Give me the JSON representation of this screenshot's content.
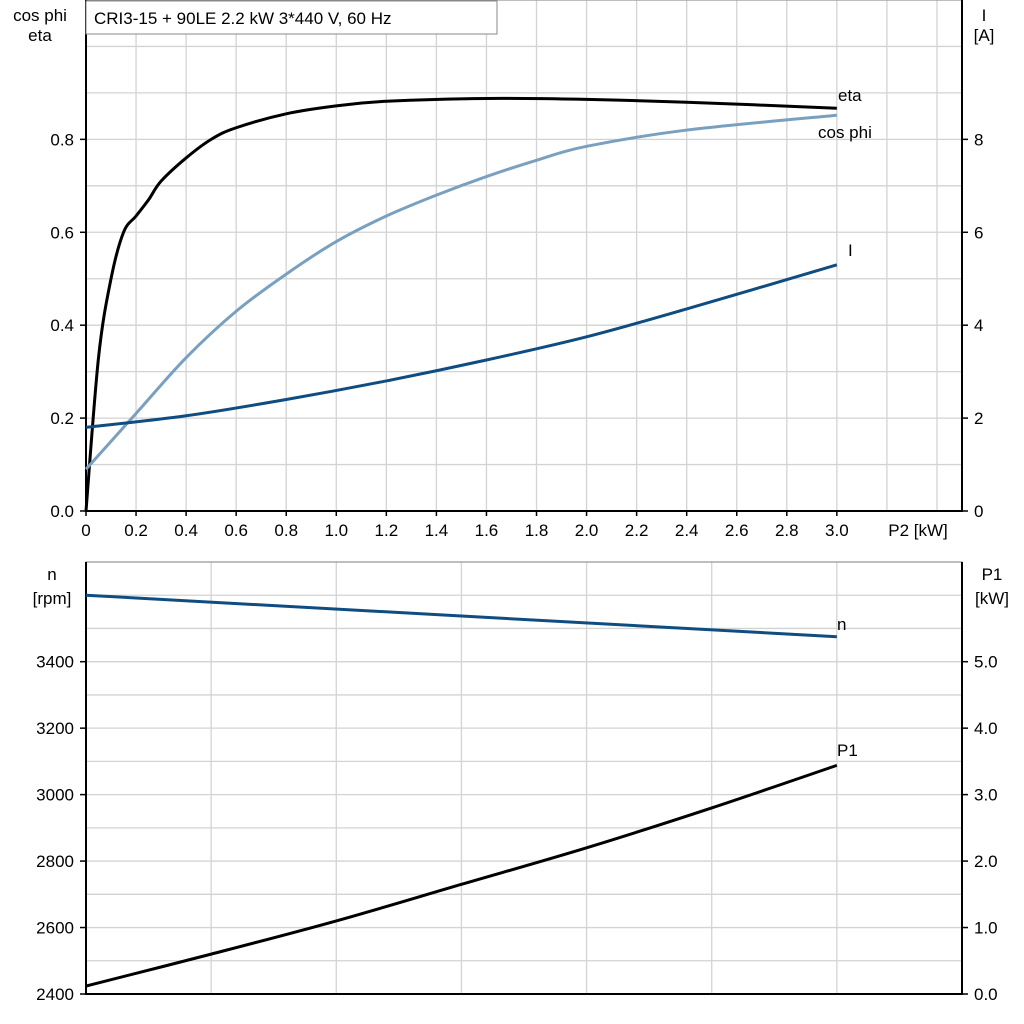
{
  "title": "CRI3-15 + 90LE   2.2 kW   3*440 V, 60 Hz",
  "colors": {
    "eta": "#000000",
    "cos_phi": "#7aa0c0",
    "I": "#0f4c81",
    "n": "#0f4c81",
    "P1": "#000000",
    "grid": "#d3d3d3"
  },
  "chart_data": [
    {
      "type": "line",
      "xlabel": "P2 [kW]",
      "xlim": [
        0,
        3.5
      ],
      "x_ticks": [
        "0",
        "0.2",
        "0.4",
        "0.6",
        "0.8",
        "1.0",
        "1.2",
        "1.4",
        "1.6",
        "1.8",
        "2.0",
        "2.2",
        "2.4",
        "2.6",
        "2.8",
        "3.0"
      ],
      "ylabel_left": [
        "cos phi",
        "eta"
      ],
      "ylim_left": [
        0,
        1.1
      ],
      "y_ticks_left": [
        "0.0",
        "0.2",
        "0.4",
        "0.6",
        "0.8"
      ],
      "ylabel_right": [
        "I",
        "[A]"
      ],
      "ylim_right": [
        0,
        11
      ],
      "y_ticks_right": [
        "0",
        "2",
        "4",
        "6",
        "8"
      ],
      "grid": true,
      "series": [
        {
          "name": "eta",
          "axis": "left",
          "x": [
            0,
            0.05,
            0.1,
            0.15,
            0.2,
            0.25,
            0.3,
            0.4,
            0.5,
            0.6,
            0.8,
            1.0,
            1.2,
            1.6,
            2.0,
            2.4,
            3.0
          ],
          "y": [
            0,
            0.33,
            0.5,
            0.6,
            0.635,
            0.67,
            0.71,
            0.76,
            0.8,
            0.825,
            0.855,
            0.872,
            0.882,
            0.888,
            0.886,
            0.88,
            0.867
          ]
        },
        {
          "name": "cos phi",
          "axis": "left",
          "x": [
            0,
            0.2,
            0.4,
            0.6,
            0.8,
            1.0,
            1.2,
            1.4,
            1.6,
            1.8,
            2.0,
            2.4,
            3.0
          ],
          "y": [
            0.09,
            0.21,
            0.33,
            0.43,
            0.51,
            0.58,
            0.635,
            0.68,
            0.72,
            0.755,
            0.785,
            0.82,
            0.852
          ]
        },
        {
          "name": "I",
          "axis": "right",
          "x": [
            0,
            0.4,
            0.8,
            1.2,
            1.6,
            2.0,
            2.4,
            3.0
          ],
          "y": [
            1.8,
            2.05,
            2.4,
            2.8,
            3.25,
            3.75,
            4.35,
            5.3
          ]
        }
      ]
    },
    {
      "type": "line",
      "xlim": [
        0,
        3.5
      ],
      "ylabel_left": [
        "n",
        "[rpm]"
      ],
      "ylim_left": [
        2400,
        3700
      ],
      "y_ticks_left": [
        "2400",
        "2600",
        "2800",
        "3000",
        "3200",
        "3400"
      ],
      "ylabel_right": [
        "P1",
        "[kW]"
      ],
      "ylim_right": [
        0,
        6.5
      ],
      "y_ticks_right": [
        "0.0",
        "1.0",
        "2.0",
        "3.0",
        "4.0",
        "5.0"
      ],
      "grid": true,
      "series": [
        {
          "name": "n",
          "axis": "left",
          "x": [
            0,
            3.0
          ],
          "y": [
            3600,
            3475
          ]
        },
        {
          "name": "P1",
          "axis": "right",
          "x": [
            0,
            0.5,
            1.0,
            1.5,
            2.0,
            2.5,
            3.0
          ],
          "y": [
            0.12,
            0.6,
            1.1,
            1.65,
            2.2,
            2.8,
            3.44
          ]
        }
      ]
    }
  ]
}
